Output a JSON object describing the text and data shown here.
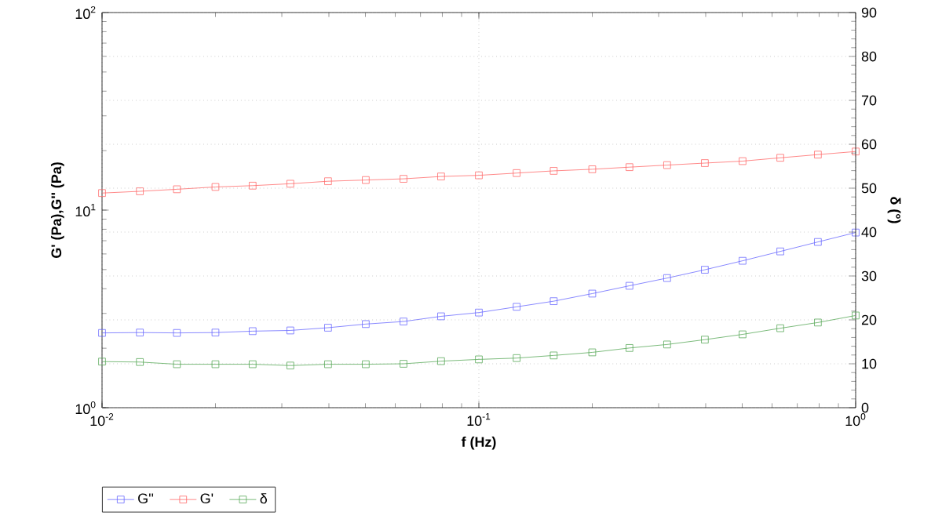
{
  "chart_data": {
    "type": "line",
    "xlabel": "f (Hz)",
    "ylabel": "G' (Pa),G'' (Pa)",
    "y2label": "δ (°)",
    "log": "xy",
    "grid": true,
    "legend": "bottom left",
    "marker": "square",
    "line_style": "solid",
    "x": [
      0.01,
      0.0126,
      0.0158,
      0.02,
      0.0251,
      0.0316,
      0.0398,
      0.0501,
      0.0631,
      0.0794,
      0.1,
      0.126,
      0.158,
      0.2,
      0.251,
      0.316,
      0.398,
      0.501,
      0.631,
      0.794,
      1
    ],
    "xlim": [
      0.01,
      1
    ],
    "xticks": [
      {
        "value": 0.01,
        "label": "10$^{-2}$"
      },
      {
        "value": 0.1,
        "label": "10$^{-1}$"
      },
      {
        "value": 1,
        "label": "10$^{0}$"
      }
    ],
    "ylim": [
      1,
      100
    ],
    "yticks": [
      {
        "value": 1,
        "label": "10$^{0}$"
      },
      {
        "value": 10,
        "label": "10$^{1}$"
      },
      {
        "value": 100,
        "label": "10$^{2}$"
      }
    ],
    "y2lim": [
      0,
      90
    ],
    "y2ticks": [
      0,
      10,
      20,
      30,
      40,
      50,
      60,
      70,
      80,
      90
    ],
    "series": [
      {
        "name": "G''",
        "color": "#6b6bff",
        "values": [
          2.39,
          2.4,
          2.39,
          2.4,
          2.44,
          2.46,
          2.54,
          2.65,
          2.73,
          2.9,
          3.03,
          3.24,
          3.46,
          3.78,
          4.14,
          4.53,
          4.99,
          5.54,
          6.18,
          6.9,
          7.7
        ]
      },
      {
        "name": "G'",
        "color": "#ff6b6b",
        "values": [
          12.2,
          12.45,
          12.75,
          13.1,
          13.3,
          13.6,
          14.0,
          14.2,
          14.4,
          14.8,
          15.0,
          15.4,
          15.8,
          16.1,
          16.5,
          16.9,
          17.3,
          17.7,
          18.4,
          19.1,
          19.8
        ]
      },
      {
        "name": "δ",
        "color": "#5aaa5a",
        "axis": "y2",
        "values": [
          10.5,
          10.4,
          9.9,
          9.9,
          9.9,
          9.6,
          9.9,
          9.9,
          10.0,
          10.6,
          11.0,
          11.3,
          11.9,
          12.6,
          13.6,
          14.4,
          15.5,
          16.7,
          18.1,
          19.4,
          21.0
        ]
      }
    ]
  }
}
